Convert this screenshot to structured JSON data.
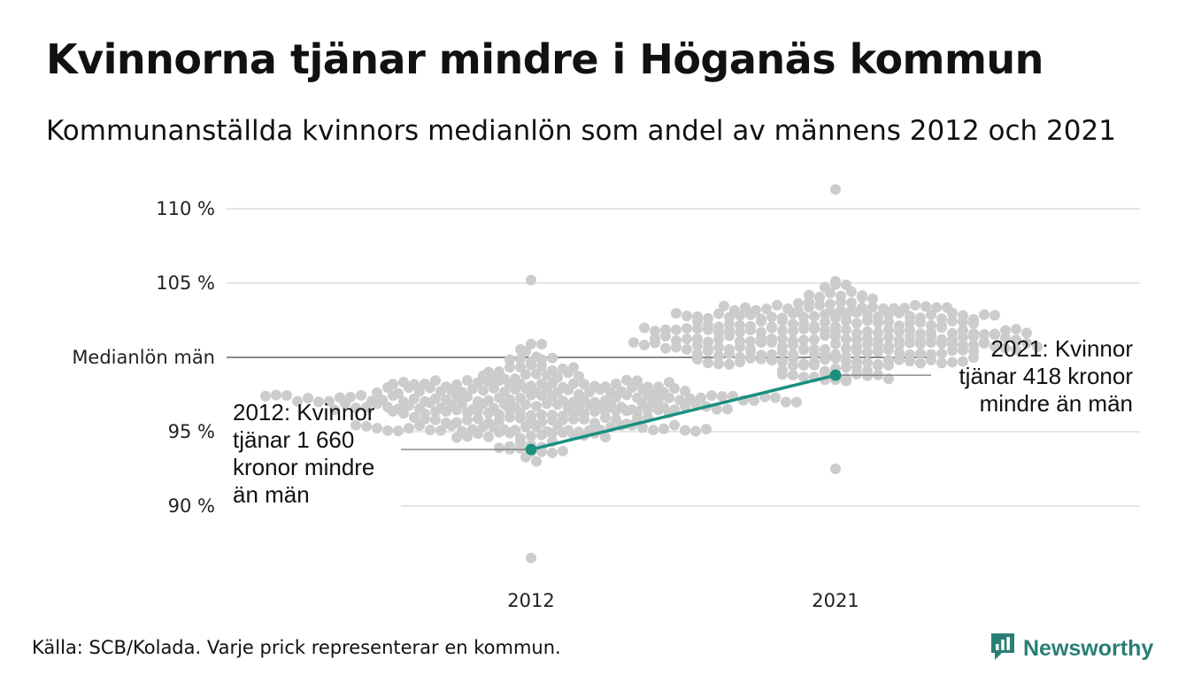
{
  "header": {
    "title": "Kvinnorna tjänar mindre i Höganäs kommun",
    "subtitle": "Kommunanställda kvinnors medianlön som andel av männens 2012 och 2021"
  },
  "footer": {
    "source": "Källa: SCB/Kolada. Varje prick representerar en kommun.",
    "brand": "Newsworthy"
  },
  "colors": {
    "dots": "#cccccc",
    "highlight": "#1a9080",
    "grid": "#e6e6e6",
    "reference_line": "#444444",
    "brand": "#2a7f74"
  },
  "chart_data": {
    "type": "scatter",
    "subtype": "beeswarm",
    "title": "Kvinnorna tjänar mindre i Höganäs kommun",
    "subtitle": "Kommunanställda kvinnors medianlön som andel av männens 2012 och 2021",
    "categories": [
      "2012",
      "2021"
    ],
    "y_ticks": [
      90,
      95,
      100,
      105,
      110
    ],
    "y_tick_labels": [
      "90 %",
      "95 %",
      "Medianlön män",
      "105 %",
      "110 %"
    ],
    "ylim": [
      85.5,
      112.5
    ],
    "grid": true,
    "reference_line": {
      "value": 100,
      "label": "Medianlön män"
    },
    "distributions": [
      {
        "category": "2012",
        "count": 290,
        "min": 86.5,
        "max": 105.2,
        "median": 96.8
      },
      {
        "category": "2021",
        "count": 290,
        "min": 92.5,
        "max": 111.3,
        "median": 101.3
      }
    ],
    "series": [
      {
        "name": "Höganäs",
        "x": [
          "2012",
          "2021"
        ],
        "values": [
          93.8,
          98.8
        ]
      }
    ],
    "annotations": [
      {
        "category": "2012",
        "lines": [
          "2012: Kvinnor",
          "tjänar 1 660",
          "kronor mindre",
          "än män"
        ]
      },
      {
        "category": "2021",
        "lines": [
          "2021: Kvinnor",
          "tjänar 418 kronor",
          "mindre än män"
        ]
      }
    ]
  }
}
